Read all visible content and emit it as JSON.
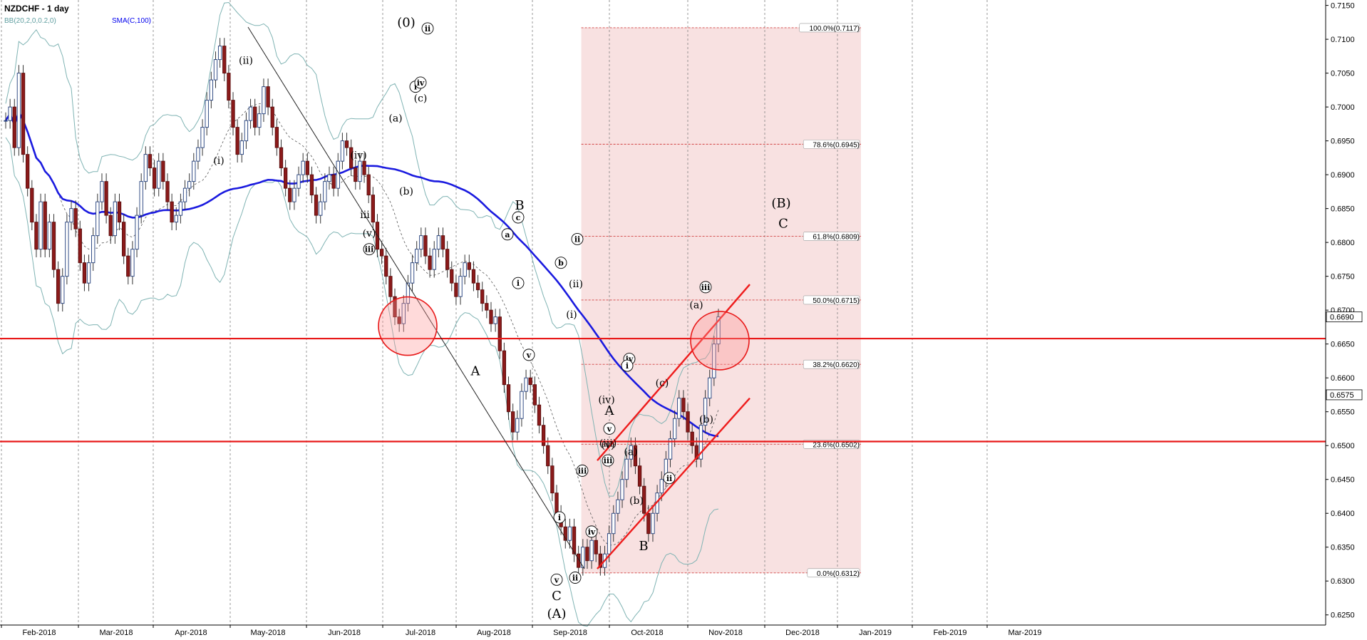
{
  "chart_data": {
    "type": "candlestick",
    "title": "NZDCHF - 1 day",
    "indicators": [
      {
        "name": "BB(20,2,0,0.2,0)",
        "color": "#5f9ea0"
      },
      {
        "name": "SMA(C,100)",
        "color": "#0000ee"
      }
    ],
    "x_axis_labels": [
      "Feb-2018",
      "Mar-2018",
      "Apr-2018",
      "May-2018",
      "Jun-2018",
      "Jul-2018",
      "Aug-2018",
      "Sep-2018",
      "Oct-2018",
      "Nov-2018",
      "Dec-2018",
      "Jan-2019",
      "Feb-2019",
      "Mar-2019"
    ],
    "y_ticks": [
      "0.7150",
      "0.7100",
      "0.7050",
      "0.7000",
      "0.6950",
      "0.6900",
      "0.6850",
      "0.6800",
      "0.6750",
      "0.6700",
      "0.6650",
      "0.6600",
      "0.6550",
      "0.6500",
      "0.6450",
      "0.6400",
      "0.6350",
      "0.6300",
      "0.6250"
    ],
    "ylim": [
      0.6235,
      0.7158
    ],
    "last_price": "0.6690",
    "sma_price": "0.6575",
    "horizontal_levels": [
      0.6658,
      0.6506
    ],
    "fibonacci": {
      "start_date": "Sep-2018",
      "end_date": "Dec-2018",
      "levels": [
        {
          "label": "100.0%(0.7117)",
          "price": 0.7117
        },
        {
          "label": "78.6%(0.6945)",
          "price": 0.6945
        },
        {
          "label": "61.8%(0.6809)",
          "price": 0.6809
        },
        {
          "label": "50.0%(0.6715)",
          "price": 0.6715
        },
        {
          "label": "38.2%(0.6620)",
          "price": 0.662
        },
        {
          "label": "23.6%(0.6502)",
          "price": 0.6502
        },
        {
          "label": "0.0%(0.6312)",
          "price": 0.6312
        }
      ]
    },
    "channel_lines": [
      {
        "from": [
          "Oct-2018",
          0.6478
        ],
        "to": [
          "Dec-2018",
          0.6738
        ]
      },
      {
        "from": [
          "Sep-2018",
          0.6318
        ],
        "to": [
          "Dec-2018",
          0.657
        ]
      }
    ],
    "trend_line": {
      "from": [
        "Apr-2018",
        0.7118
      ],
      "to": [
        "Sep-2018",
        0.6318
      ]
    },
    "highlight_circles": [
      {
        "date": "Jul-2018",
        "price": 0.6668
      },
      {
        "date": "Nov-2018",
        "price": 0.6655
      }
    ],
    "price_path": [
      [
        0.698,
        0.7,
        0.694,
        0.705,
        0.693,
        0.688,
        0.683,
        0.679,
        0.686,
        0.679,
        0.683,
        0.676,
        0.671,
        0.675,
        0.683,
        0.685,
        0.682,
        0.677,
        0.674,
        0.677,
        0.681,
        0.686,
        0.689,
        0.684,
        0.681,
        0.686,
        0.683,
        0.678,
        0.675,
        0.679,
        0.684,
        0.689,
        0.693,
        0.691,
        0.688,
        0.692,
        0.689,
        0.686,
        0.683,
        0.684,
        0.686,
        0.688,
        0.689,
        0.692,
        0.694,
        0.697,
        0.701,
        0.704,
        0.707,
        0.709,
        0.705,
        0.701,
        0.697,
        0.693,
        0.695,
        0.698,
        0.7,
        0.697,
        0.699,
        0.703,
        0.7,
        0.697,
        0.694,
        0.691,
        0.688,
        0.686,
        0.688,
        0.69,
        0.692,
        0.69,
        0.687,
        0.684,
        0.686,
        0.689,
        0.69,
        0.688,
        0.692,
        0.695,
        0.694,
        0.691,
        0.689,
        0.692,
        0.69,
        0.687,
        0.683,
        0.679,
        0.678,
        0.675,
        0.672,
        0.669,
        0.668,
        0.671,
        0.674,
        0.677,
        0.679,
        0.681,
        0.678,
        0.676,
        0.679,
        0.681,
        0.679,
        0.676,
        0.674,
        0.672,
        0.675,
        0.677,
        0.676,
        0.674,
        0.673,
        0.671,
        0.67,
        0.668,
        0.669,
        0.664,
        0.659,
        0.655,
        0.652,
        0.654,
        0.658,
        0.66,
        0.659,
        0.656,
        0.653,
        0.65,
        0.647,
        0.643,
        0.64,
        0.638,
        0.636,
        0.638,
        0.634,
        0.632,
        0.635,
        0.633,
        0.636,
        0.634,
        0.632,
        0.634,
        0.637,
        0.64,
        0.642,
        0.645,
        0.648,
        0.65,
        0.647,
        0.644,
        0.64,
        0.637,
        0.64,
        0.643,
        0.645,
        0.648,
        0.651,
        0.654,
        0.657,
        0.655,
        0.652,
        0.65,
        0.648,
        0.653,
        0.657,
        0.66,
        0.665,
        0.669
      ]
    ],
    "wave_labels": [
      {
        "text": "(0)",
        "date": "Apr-2018",
        "price": 0.7125,
        "style": "large"
      },
      {
        "text": "ii",
        "date": "Apr-2018",
        "price": 0.7116,
        "style": "circle"
      },
      {
        "text": "i",
        "date": "Apr-2018",
        "price": 0.703,
        "style": "circle"
      },
      {
        "text": "(ii)",
        "date": "May-2018",
        "price": 0.7068,
        "style": "plain"
      },
      {
        "text": "(i)",
        "date": "May-2018",
        "price": 0.692,
        "style": "plain"
      },
      {
        "text": "(iv)",
        "date": "Jun-2018",
        "price": 0.6928,
        "style": "plain"
      },
      {
        "text": "iii",
        "date": "Jun-2018",
        "price": 0.684,
        "style": "plain"
      },
      {
        "text": "(v)",
        "date": "Jun-2018",
        "price": 0.6813,
        "style": "plain"
      },
      {
        "text": "iii",
        "date": "Jun-2018",
        "price": 0.679,
        "style": "circle"
      },
      {
        "text": "(a)",
        "date": "Jun-2018",
        "price": 0.6983,
        "style": "plain"
      },
      {
        "text": "iv",
        "date": "Jun-2018",
        "price": 0.7036,
        "style": "circle"
      },
      {
        "text": "(c)",
        "date": "Jun-2018",
        "price": 0.7012,
        "style": "plain"
      },
      {
        "text": "(b)",
        "date": "Jun-2018",
        "price": 0.6875,
        "style": "plain"
      },
      {
        "text": "B",
        "date": "Jul-2018",
        "price": 0.6855,
        "style": "large"
      },
      {
        "text": "c",
        "date": "Jul-2018",
        "price": 0.6837,
        "style": "circle"
      },
      {
        "text": "a",
        "date": "Jul-2018",
        "price": 0.6812,
        "style": "circle"
      },
      {
        "text": "ii",
        "date": "Aug-2018",
        "price": 0.6805,
        "style": "circle"
      },
      {
        "text": "b",
        "date": "Jul-2018",
        "price": 0.677,
        "style": "circle"
      },
      {
        "text": "i",
        "date": "Jul-2018",
        "price": 0.674,
        "style": "circle"
      },
      {
        "text": "v",
        "date": "Jul-2018",
        "price": 0.6634,
        "style": "circle"
      },
      {
        "text": "A",
        "date": "Jul-2018",
        "price": 0.661,
        "style": "large"
      },
      {
        "text": "(ii)",
        "date": "Aug-2018",
        "price": 0.6738,
        "style": "plain"
      },
      {
        "text": "(i)",
        "date": "Aug-2018",
        "price": 0.6693,
        "style": "plain"
      },
      {
        "text": "iv",
        "date": "Aug-2018",
        "price": 0.6628,
        "style": "circle"
      },
      {
        "text": "(iv)",
        "date": "Aug-2018",
        "price": 0.6567,
        "style": "plain"
      },
      {
        "text": "(iii)",
        "date": "Aug-2018",
        "price": 0.6503,
        "style": "plain"
      },
      {
        "text": "(v)",
        "date": "Aug-2018",
        "price": 0.65,
        "style": "plain"
      },
      {
        "text": "iii",
        "date": "Aug-2018",
        "price": 0.6478,
        "style": "circle"
      },
      {
        "text": "i",
        "date": "Sep-2018",
        "price": 0.6394,
        "style": "circle"
      },
      {
        "text": "v",
        "date": "Sep-2018",
        "price": 0.6302,
        "style": "circle"
      },
      {
        "text": "C",
        "date": "Sep-2018",
        "price": 0.6278,
        "style": "large"
      },
      {
        "text": "(A)",
        "date": "Sep-2018",
        "price": 0.6252,
        "style": "large"
      },
      {
        "text": "ii",
        "date": "Sep-2018",
        "price": 0.6305,
        "style": "circle"
      },
      {
        "text": "iii",
        "date": "Sep-2018",
        "price": 0.6463,
        "style": "circle"
      },
      {
        "text": "iv",
        "date": "Oct-2018",
        "price": 0.6373,
        "style": "circle"
      },
      {
        "text": "A",
        "date": "Oct-2018",
        "price": 0.6552,
        "style": "large"
      },
      {
        "text": "v",
        "date": "Oct-2018",
        "price": 0.6525,
        "style": "circle"
      },
      {
        "text": "(a)",
        "date": "Oct-2018",
        "price": 0.649,
        "style": "plain"
      },
      {
        "text": "(b)",
        "date": "Oct-2018",
        "price": 0.6418,
        "style": "plain"
      },
      {
        "text": "B",
        "date": "Oct-2018",
        "price": 0.6352,
        "style": "large"
      },
      {
        "text": "i",
        "date": "Oct-2018",
        "price": 0.6618,
        "style": "circle"
      },
      {
        "text": "(c)",
        "date": "Oct-2018",
        "price": 0.6592,
        "style": "plain"
      },
      {
        "text": "ii",
        "date": "Oct-2018",
        "price": 0.6452,
        "style": "circle"
      },
      {
        "text": "(b)",
        "date": "Nov-2018",
        "price": 0.6538,
        "style": "plain"
      },
      {
        "text": "(a)",
        "date": "Nov-2018",
        "price": 0.6707,
        "style": "plain"
      },
      {
        "text": "iii",
        "date": "Nov-2018",
        "price": 0.6734,
        "style": "circle"
      },
      {
        "text": "(B)",
        "date": "Dec-2018",
        "price": 0.6858,
        "style": "large"
      },
      {
        "text": "C",
        "date": "Dec-2018",
        "price": 0.6828,
        "style": "large"
      }
    ]
  }
}
